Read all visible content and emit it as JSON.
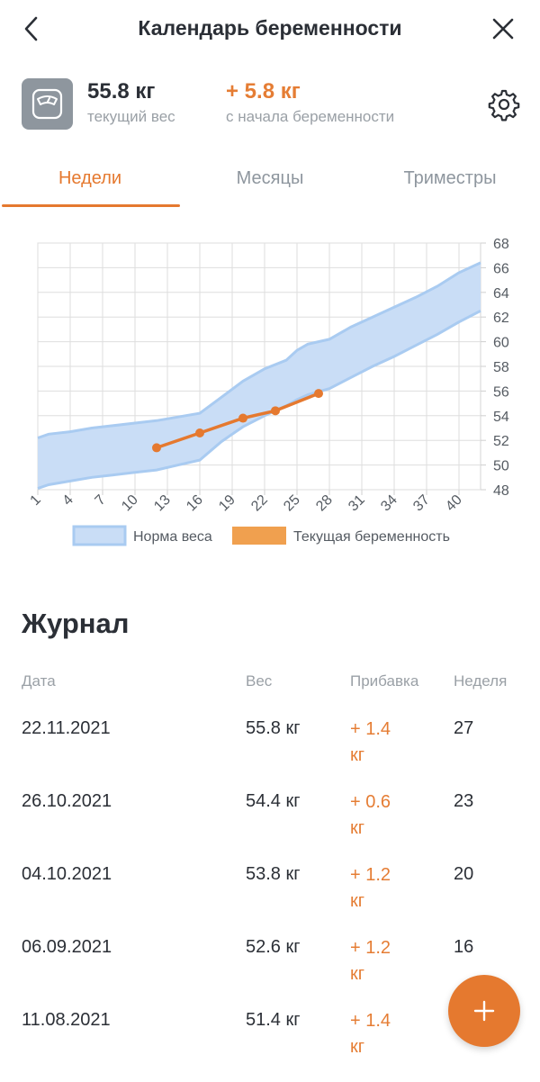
{
  "header": {
    "title": "Календарь беременности"
  },
  "summary": {
    "current_weight": "55.8 кг",
    "current_weight_label": "текущий вес",
    "gain": "+ 5.8 кг",
    "gain_label": "с начала беременности"
  },
  "tabs": [
    {
      "label": "Недели",
      "active": true
    },
    {
      "label": "Месяцы",
      "active": false
    },
    {
      "label": "Триместры",
      "active": false
    }
  ],
  "colors": {
    "accent": "#e5792f",
    "norm_fill": "#c9ddf6",
    "norm_line": "#a9cbf1",
    "icon_tile": "#8e969e"
  },
  "icons": {
    "back": "chevron-left-icon",
    "close": "close-icon",
    "scale": "scale-icon",
    "settings": "gear-icon",
    "add": "plus-icon"
  },
  "chart_data": {
    "type": "area",
    "x_ticks": [
      "1",
      "4",
      "7",
      "10",
      "13",
      "16",
      "19",
      "22",
      "25",
      "28",
      "31",
      "34",
      "37",
      "40"
    ],
    "y_ticks": [
      "48",
      "50",
      "52",
      "54",
      "56",
      "58",
      "60",
      "62",
      "64",
      "66",
      "68"
    ],
    "xlim": [
      1,
      42
    ],
    "ylim": [
      48,
      68
    ],
    "grid": true,
    "legend": [
      "Норма веса",
      "Текущая беременность"
    ],
    "legend_position": "bottom",
    "norm_band": {
      "name": "Норма веса",
      "x": [
        1,
        2,
        4,
        6,
        8,
        10,
        12,
        14,
        16,
        18,
        20,
        22,
        24,
        25,
        26,
        28,
        30,
        32,
        34,
        36,
        38,
        40,
        42
      ],
      "upper": [
        52.2,
        52.5,
        52.7,
        53.0,
        53.2,
        53.4,
        53.6,
        53.9,
        54.2,
        55.5,
        56.8,
        57.8,
        58.5,
        59.3,
        59.8,
        60.2,
        61.2,
        62.0,
        62.8,
        63.6,
        64.5,
        65.6,
        66.4
      ],
      "lower": [
        48.1,
        48.4,
        48.7,
        49.0,
        49.2,
        49.4,
        49.6,
        50.0,
        50.4,
        51.9,
        53.1,
        54.0,
        54.8,
        55.3,
        55.7,
        56.2,
        57.1,
        58.0,
        58.8,
        59.7,
        60.6,
        61.6,
        62.5
      ]
    },
    "series": [
      {
        "name": "Текущая беременность",
        "x": [
          12,
          16,
          20,
          23,
          27
        ],
        "y": [
          51.4,
          52.6,
          53.8,
          54.4,
          55.8
        ]
      }
    ]
  },
  "journal": {
    "title": "Журнал",
    "headers": {
      "date": "Дата",
      "weight": "Вес",
      "gain": "Прибавка",
      "week": "Неделя"
    },
    "rows": [
      {
        "date": "22.11.2021",
        "weight": "55.8 кг",
        "gain_line1": "+ 1.4",
        "gain_line2": "кг",
        "week": "27"
      },
      {
        "date": "26.10.2021",
        "weight": "54.4 кг",
        "gain_line1": "+ 0.6",
        "gain_line2": "кг",
        "week": "23"
      },
      {
        "date": "04.10.2021",
        "weight": "53.8 кг",
        "gain_line1": "+ 1.2",
        "gain_line2": "кг",
        "week": "20"
      },
      {
        "date": "06.09.2021",
        "weight": "52.6 кг",
        "gain_line1": "+ 1.2",
        "gain_line2": "кг",
        "week": "16"
      },
      {
        "date": "11.08.2021",
        "weight": "51.4 кг",
        "gain_line1": "+ 1.4",
        "gain_line2": "кг",
        "week": ""
      }
    ]
  }
}
